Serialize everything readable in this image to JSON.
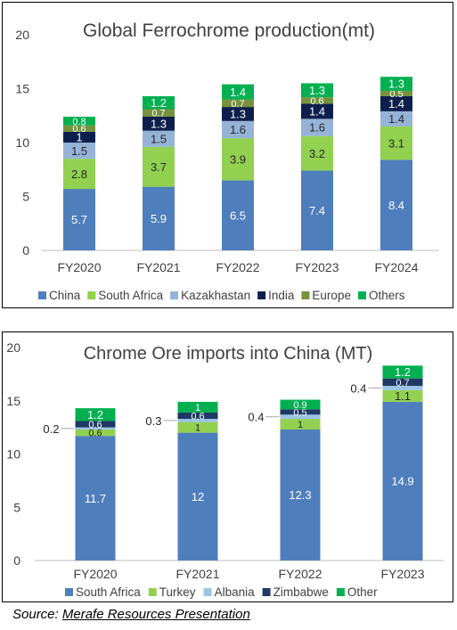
{
  "chart_data": [
    {
      "type": "bar",
      "stacked": true,
      "title": "Global Ferrochrome production(mt)",
      "categories": [
        "FY2020",
        "FY2021",
        "FY2022",
        "FY2023",
        "FY2024"
      ],
      "ylim": [
        0,
        20
      ],
      "yticks": [
        0,
        5,
        10,
        15,
        20
      ],
      "grid": false,
      "legend_position": "bottom",
      "series": [
        {
          "name": "China",
          "color": "#4F7EBD",
          "values": [
            5.7,
            5.9,
            6.5,
            7.4,
            8.4
          ]
        },
        {
          "name": "South Africa",
          "color": "#92D050",
          "values": [
            2.8,
            3.7,
            3.9,
            3.2,
            3.1
          ]
        },
        {
          "name": "Kazakhastan",
          "color": "#95B3D7",
          "values": [
            1.5,
            1.5,
            1.6,
            1.6,
            1.4
          ]
        },
        {
          "name": "India",
          "color": "#0E1F4D",
          "values": [
            1,
            1.3,
            1.3,
            1.4,
            1.4
          ]
        },
        {
          "name": "Europe",
          "color": "#76923C",
          "values": [
            0.6,
            0.7,
            0.7,
            0.6,
            0.5
          ]
        },
        {
          "name": "Others",
          "color": "#00B050",
          "values": [
            0.8,
            1.2,
            1.4,
            1.3,
            1.3
          ]
        }
      ]
    },
    {
      "type": "bar",
      "stacked": true,
      "title": "Chrome Ore imports into China (MT)",
      "categories": [
        "FY2020",
        "FY2021",
        "FY2022",
        "FY2023"
      ],
      "ylim": [
        0,
        20
      ],
      "yticks": [
        0,
        5,
        10,
        15,
        20
      ],
      "grid": false,
      "legend_position": "bottom",
      "series": [
        {
          "name": "South Africa",
          "color": "#4F7EBD",
          "values": [
            11.7,
            12,
            12.3,
            14.9
          ]
        },
        {
          "name": "Turkey",
          "color": "#92D050",
          "values": [
            0.6,
            1,
            1,
            1.1
          ]
        },
        {
          "name": "Albania",
          "color": "#9DC3E6",
          "values": [
            0.2,
            0.3,
            0.4,
            0.4
          ]
        },
        {
          "name": "Zimbabwe",
          "color": "#1F3864",
          "values": [
            0.6,
            0.6,
            0.5,
            0.7
          ]
        },
        {
          "name": "Other",
          "color": "#00B050",
          "values": [
            1.2,
            1,
            0.9,
            1.2
          ]
        }
      ]
    }
  ],
  "source": {
    "prefix": "Source: ",
    "text": "Merafe Resources Presentation"
  }
}
